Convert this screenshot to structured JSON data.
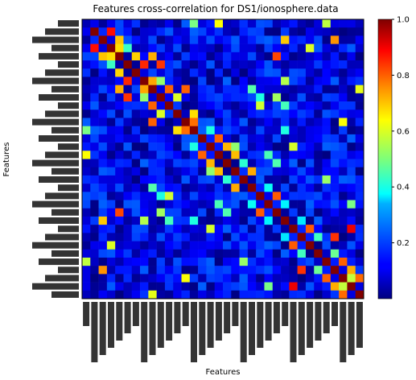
{
  "chart_data": {
    "type": "heatmap",
    "title": "Features cross-correlation for DS1/ionosphere.data",
    "xlabel": "Features",
    "ylabel": "Features",
    "colormap": "jet",
    "value_range": [
      0.0,
      1.0
    ],
    "colorbar": {
      "ticks": [
        0.2,
        0.4,
        0.6,
        0.8,
        1.0
      ],
      "tick_labels": [
        "0.2",
        "0.4",
        "0.6",
        "0.8",
        "1.0"
      ]
    },
    "feature_count_approx": 34,
    "diagonal_value": 1.0,
    "off_diagonal_typical_range": [
      0.0,
      0.4
    ],
    "notes_visible": "Feature tick labels are densely overlapped and illegible"
  }
}
